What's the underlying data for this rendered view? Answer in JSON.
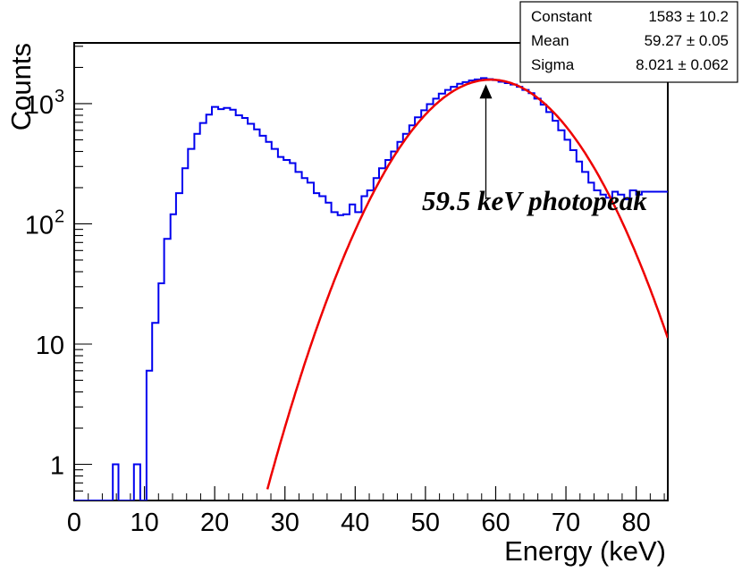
{
  "chart_data": {
    "type": "histogram",
    "scale_y": "log",
    "xlabel": "Energy (keV)",
    "ylabel": "Counts",
    "xlim": [
      0,
      84.5
    ],
    "ylim": [
      0.5,
      3200
    ],
    "x_ticks": [
      0,
      10,
      20,
      30,
      40,
      50,
      60,
      70,
      80
    ],
    "y_ticks": [
      {
        "value": 1,
        "base": "1",
        "exp": ""
      },
      {
        "value": 10,
        "base": "10",
        "exp": ""
      },
      {
        "value": 100,
        "base": "10",
        "exp": "2"
      },
      {
        "value": 1000,
        "base": "10",
        "exp": "3"
      }
    ],
    "histogram": {
      "name": "data",
      "color": "#0000ee",
      "bin_width": 0.845,
      "points": [
        [
          0.0,
          0.5
        ],
        [
          5.5,
          0.5
        ],
        [
          5.5,
          1
        ],
        [
          6.3,
          1
        ],
        [
          6.3,
          0.5
        ],
        [
          8.5,
          0.5
        ],
        [
          8.5,
          1
        ],
        [
          9.4,
          1
        ],
        [
          9.4,
          0.5
        ],
        [
          10.3,
          0.5
        ],
        [
          10.3,
          6
        ],
        [
          11.1,
          6
        ],
        [
          11.1,
          15
        ],
        [
          12.0,
          15
        ],
        [
          12.0,
          32
        ],
        [
          12.8,
          32
        ],
        [
          12.8,
          75
        ],
        [
          13.7,
          75
        ],
        [
          13.7,
          120
        ],
        [
          14.5,
          120
        ],
        [
          14.5,
          180
        ],
        [
          15.4,
          180
        ],
        [
          15.4,
          290
        ],
        [
          16.2,
          290
        ],
        [
          16.2,
          420
        ],
        [
          17.1,
          420
        ],
        [
          17.1,
          560
        ],
        [
          17.9,
          560
        ],
        [
          17.9,
          690
        ],
        [
          18.8,
          690
        ],
        [
          18.8,
          810
        ],
        [
          19.6,
          810
        ],
        [
          19.6,
          940
        ],
        [
          20.5,
          940
        ],
        [
          20.5,
          900
        ],
        [
          21.3,
          900
        ],
        [
          21.3,
          920
        ],
        [
          22.2,
          920
        ],
        [
          22.2,
          890
        ],
        [
          23.0,
          890
        ],
        [
          23.0,
          800
        ],
        [
          23.9,
          800
        ],
        [
          23.9,
          760
        ],
        [
          24.7,
          760
        ],
        [
          24.7,
          680
        ],
        [
          25.6,
          680
        ],
        [
          25.6,
          610
        ],
        [
          26.4,
          610
        ],
        [
          26.4,
          540
        ],
        [
          27.3,
          540
        ],
        [
          27.3,
          480
        ],
        [
          28.1,
          480
        ],
        [
          28.1,
          420
        ],
        [
          29.0,
          420
        ],
        [
          29.0,
          360
        ],
        [
          29.8,
          360
        ],
        [
          29.8,
          340
        ],
        [
          30.7,
          340
        ],
        [
          30.7,
          320
        ],
        [
          31.5,
          320
        ],
        [
          31.5,
          270
        ],
        [
          32.4,
          270
        ],
        [
          32.4,
          240
        ],
        [
          33.2,
          240
        ],
        [
          33.2,
          220
        ],
        [
          34.1,
          220
        ],
        [
          34.1,
          180
        ],
        [
          34.9,
          180
        ],
        [
          34.9,
          170
        ],
        [
          35.8,
          170
        ],
        [
          35.8,
          150
        ],
        [
          36.6,
          150
        ],
        [
          36.6,
          125
        ],
        [
          37.5,
          125
        ],
        [
          37.5,
          118
        ],
        [
          38.3,
          118
        ],
        [
          38.3,
          120
        ],
        [
          39.2,
          120
        ],
        [
          39.2,
          145
        ],
        [
          40.0,
          145
        ],
        [
          40.0,
          125
        ],
        [
          40.9,
          125
        ],
        [
          40.9,
          170
        ],
        [
          41.7,
          170
        ],
        [
          41.7,
          190
        ],
        [
          42.6,
          190
        ],
        [
          42.6,
          240
        ],
        [
          43.4,
          240
        ],
        [
          43.4,
          290
        ],
        [
          44.3,
          290
        ],
        [
          44.3,
          340
        ],
        [
          45.1,
          340
        ],
        [
          45.1,
          400
        ],
        [
          46.0,
          400
        ],
        [
          46.0,
          480
        ],
        [
          46.8,
          480
        ],
        [
          46.8,
          560
        ],
        [
          47.7,
          560
        ],
        [
          47.7,
          660
        ],
        [
          48.5,
          660
        ],
        [
          48.5,
          770
        ],
        [
          49.4,
          770
        ],
        [
          49.4,
          880
        ],
        [
          50.2,
          880
        ],
        [
          50.2,
          990
        ],
        [
          51.1,
          990
        ],
        [
          51.1,
          1100
        ],
        [
          51.9,
          1100
        ],
        [
          51.9,
          1210
        ],
        [
          52.8,
          1210
        ],
        [
          52.8,
          1300
        ],
        [
          53.6,
          1300
        ],
        [
          53.6,
          1380
        ],
        [
          54.5,
          1380
        ],
        [
          54.5,
          1460
        ],
        [
          55.3,
          1460
        ],
        [
          55.3,
          1510
        ],
        [
          56.2,
          1510
        ],
        [
          56.2,
          1560
        ],
        [
          57.0,
          1560
        ],
        [
          57.0,
          1590
        ],
        [
          57.9,
          1590
        ],
        [
          57.9,
          1630
        ],
        [
          58.7,
          1630
        ],
        [
          58.7,
          1600
        ],
        [
          59.6,
          1600
        ],
        [
          59.6,
          1570
        ],
        [
          60.4,
          1570
        ],
        [
          60.4,
          1520
        ],
        [
          61.3,
          1520
        ],
        [
          61.3,
          1480
        ],
        [
          62.1,
          1480
        ],
        [
          62.1,
          1440
        ],
        [
          63.0,
          1440
        ],
        [
          63.0,
          1380
        ],
        [
          63.8,
          1380
        ],
        [
          63.8,
          1300
        ],
        [
          64.7,
          1300
        ],
        [
          64.7,
          1220
        ],
        [
          65.5,
          1220
        ],
        [
          65.5,
          1100
        ],
        [
          66.4,
          1100
        ],
        [
          66.4,
          980
        ],
        [
          67.2,
          980
        ],
        [
          67.2,
          850
        ],
        [
          68.1,
          850
        ],
        [
          68.1,
          720
        ],
        [
          68.9,
          720
        ],
        [
          68.9,
          600
        ],
        [
          69.8,
          600
        ],
        [
          69.8,
          500
        ],
        [
          70.6,
          500
        ],
        [
          70.6,
          410
        ],
        [
          71.5,
          410
        ],
        [
          71.5,
          330
        ],
        [
          72.3,
          330
        ],
        [
          72.3,
          270
        ],
        [
          73.2,
          270
        ],
        [
          73.2,
          220
        ],
        [
          74.0,
          220
        ],
        [
          74.0,
          190
        ],
        [
          74.9,
          190
        ],
        [
          74.9,
          175
        ],
        [
          75.7,
          175
        ],
        [
          75.7,
          165
        ],
        [
          76.6,
          165
        ],
        [
          76.6,
          185
        ],
        [
          77.4,
          185
        ],
        [
          77.4,
          175
        ],
        [
          78.3,
          175
        ],
        [
          78.3,
          160
        ],
        [
          79.1,
          160
        ],
        [
          79.1,
          190
        ],
        [
          80.0,
          190
        ],
        [
          80.0,
          175
        ],
        [
          80.8,
          175
        ],
        [
          80.8,
          185
        ],
        [
          84.5,
          185
        ]
      ]
    },
    "fit": {
      "name": "Gaussian fit",
      "color": "#ee0000",
      "constant": 1583,
      "mean": 59.27,
      "sigma": 8.021,
      "x_range": [
        27.5,
        84.5
      ]
    },
    "stats_box": [
      {
        "label": "Constant",
        "value": "1583 ± 10.2"
      },
      {
        "label": "Mean",
        "value": "59.27 ± 0.05"
      },
      {
        "label": "Sigma",
        "value": "8.021 ± 0.062"
      }
    ],
    "annotation": {
      "text": "59.5 keV photopeak",
      "arrow_from": [
        58.6,
        160
      ],
      "arrow_to": [
        58.6,
        1400
      ]
    }
  }
}
